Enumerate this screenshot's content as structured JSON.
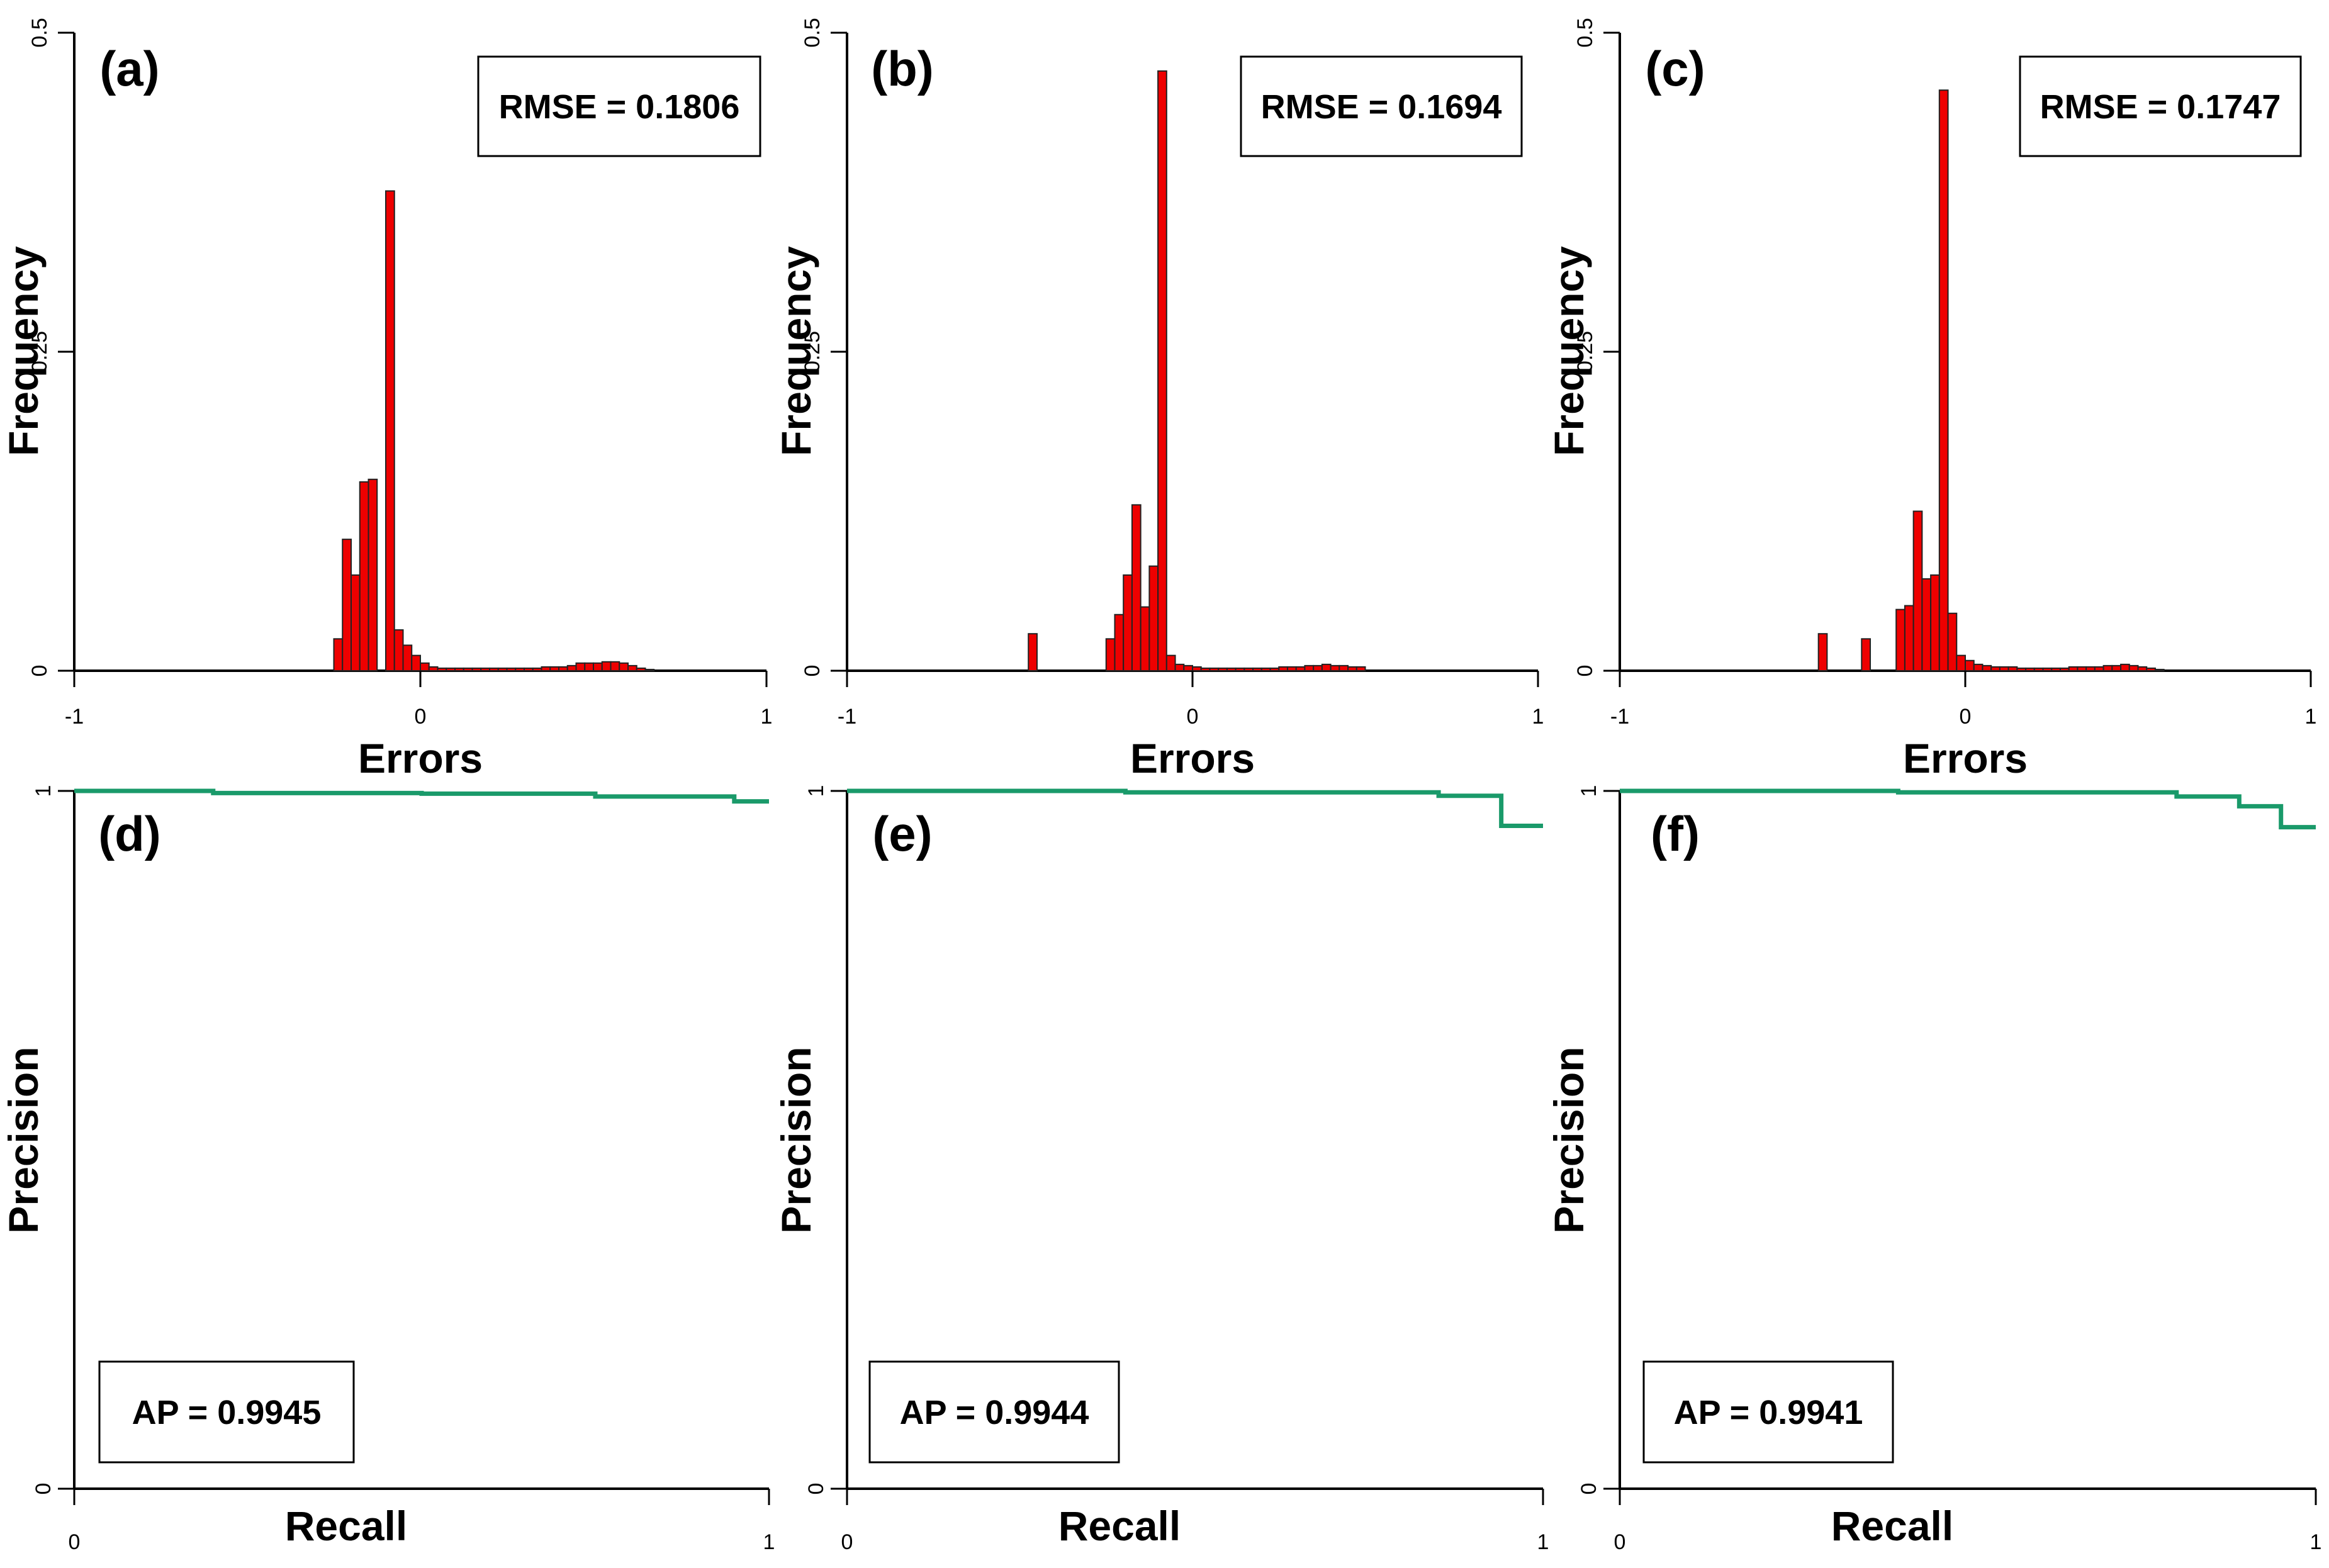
{
  "colors": {
    "bar_fill": "#ee0000",
    "bar_stroke": "#222222",
    "pr_line": "#1a9a6a",
    "axis": "#000000"
  },
  "chart_data": [
    {
      "type": "bar",
      "label": "(a)",
      "annotation": "RMSE = 0.1806",
      "xlabel": "Errors",
      "ylabel": "Frequency",
      "xlim": [
        -1,
        1
      ],
      "ylim": [
        0,
        0.5
      ],
      "xticks": [
        "-1",
        "0",
        "1"
      ],
      "yticks": [
        "0",
        "0.25",
        "0.5"
      ],
      "bin_width": 0.025,
      "first_bin_start": -0.25,
      "values": [
        0.025,
        0.103,
        0.075,
        0.148,
        0.15,
        0.0,
        0.376,
        0.032,
        0.02,
        0.012,
        0.006,
        0.003,
        0.002,
        0.002,
        0.002,
        0.002,
        0.002,
        0.002,
        0.002,
        0.002,
        0.002,
        0.002,
        0.002,
        0.002,
        0.003,
        0.003,
        0.003,
        0.004,
        0.006,
        0.006,
        0.006,
        0.007,
        0.007,
        0.006,
        0.004,
        0.002,
        0.001
      ]
    },
    {
      "type": "bar",
      "label": "(b)",
      "annotation": "RMSE = 0.1694",
      "xlabel": "Errors",
      "ylabel": "Frequency",
      "xlim": [
        -1,
        1
      ],
      "ylim": [
        0,
        0.5
      ],
      "xticks": [
        "-1",
        "0",
        "1"
      ],
      "yticks": [
        "0",
        "0.25",
        "0.5"
      ],
      "bin_width": 0.025,
      "first_bin_start": -0.475,
      "values": [
        0.029,
        0,
        0,
        0,
        0,
        0,
        0,
        0,
        0,
        0.025,
        0.044,
        0.075,
        0.13,
        0.05,
        0.082,
        0.47,
        0.012,
        0.005,
        0.004,
        0.003,
        0.002,
        0.002,
        0.002,
        0.002,
        0.002,
        0.002,
        0.002,
        0.002,
        0.002,
        0.003,
        0.003,
        0.003,
        0.004,
        0.004,
        0.005,
        0.004,
        0.004,
        0.003,
        0.003
      ]
    },
    {
      "type": "bar",
      "label": "(c)",
      "annotation": "RMSE = 0.1747",
      "xlabel": "Errors",
      "ylabel": "Frequency",
      "xlim": [
        -1,
        1
      ],
      "ylim": [
        0,
        0.5
      ],
      "xticks": [
        "-1",
        "0",
        "1"
      ],
      "yticks": [
        "0",
        "0.25",
        "0.5"
      ],
      "bin_width": 0.025,
      "first_bin_start": -0.425,
      "values": [
        0.029,
        0,
        0,
        0,
        0,
        0.025,
        0,
        0,
        0,
        0.048,
        0.051,
        0.125,
        0.072,
        0.075,
        0.455,
        0.045,
        0.012,
        0.008,
        0.005,
        0.004,
        0.003,
        0.003,
        0.003,
        0.002,
        0.002,
        0.002,
        0.002,
        0.002,
        0.002,
        0.003,
        0.003,
        0.003,
        0.003,
        0.004,
        0.004,
        0.005,
        0.004,
        0.003,
        0.002,
        0.001
      ]
    },
    {
      "type": "line",
      "label": "(d)",
      "annotation": "AP = 0.9945",
      "xlabel": "Recall",
      "ylabel": "Precision",
      "xlim": [
        0,
        1
      ],
      "ylim": [
        0,
        1
      ],
      "xticks": [
        "0",
        "1"
      ],
      "yticks": [
        "0",
        "1"
      ],
      "x": [
        0.0,
        0.2,
        0.2,
        0.5,
        0.5,
        0.75,
        0.75,
        0.95,
        0.95,
        1.0
      ],
      "y": [
        1.0,
        1.0,
        0.997,
        0.997,
        0.996,
        0.996,
        0.992,
        0.992,
        0.985,
        0.985
      ]
    },
    {
      "type": "line",
      "label": "(e)",
      "annotation": "AP = 0.9944",
      "xlabel": "Recall",
      "ylabel": "Precision",
      "xlim": [
        0,
        1
      ],
      "ylim": [
        0,
        1
      ],
      "xticks": [
        "0",
        "1"
      ],
      "yticks": [
        "0",
        "1"
      ],
      "x": [
        0.0,
        0.4,
        0.4,
        0.85,
        0.85,
        0.94,
        0.94,
        1.0
      ],
      "y": [
        1.0,
        1.0,
        0.998,
        0.998,
        0.993,
        0.993,
        0.95,
        0.95
      ]
    },
    {
      "type": "line",
      "label": "(f)",
      "annotation": "AP = 0.9941",
      "xlabel": "Recall",
      "ylabel": "Precision",
      "xlim": [
        0,
        1
      ],
      "ylim": [
        0,
        1
      ],
      "xticks": [
        "0",
        "1"
      ],
      "yticks": [
        "0",
        "1"
      ],
      "x": [
        0.0,
        0.4,
        0.4,
        0.8,
        0.8,
        0.89,
        0.89,
        0.95,
        0.95,
        1.0
      ],
      "y": [
        1.0,
        1.0,
        0.998,
        0.998,
        0.992,
        0.992,
        0.978,
        0.978,
        0.948,
        0.948
      ]
    }
  ]
}
